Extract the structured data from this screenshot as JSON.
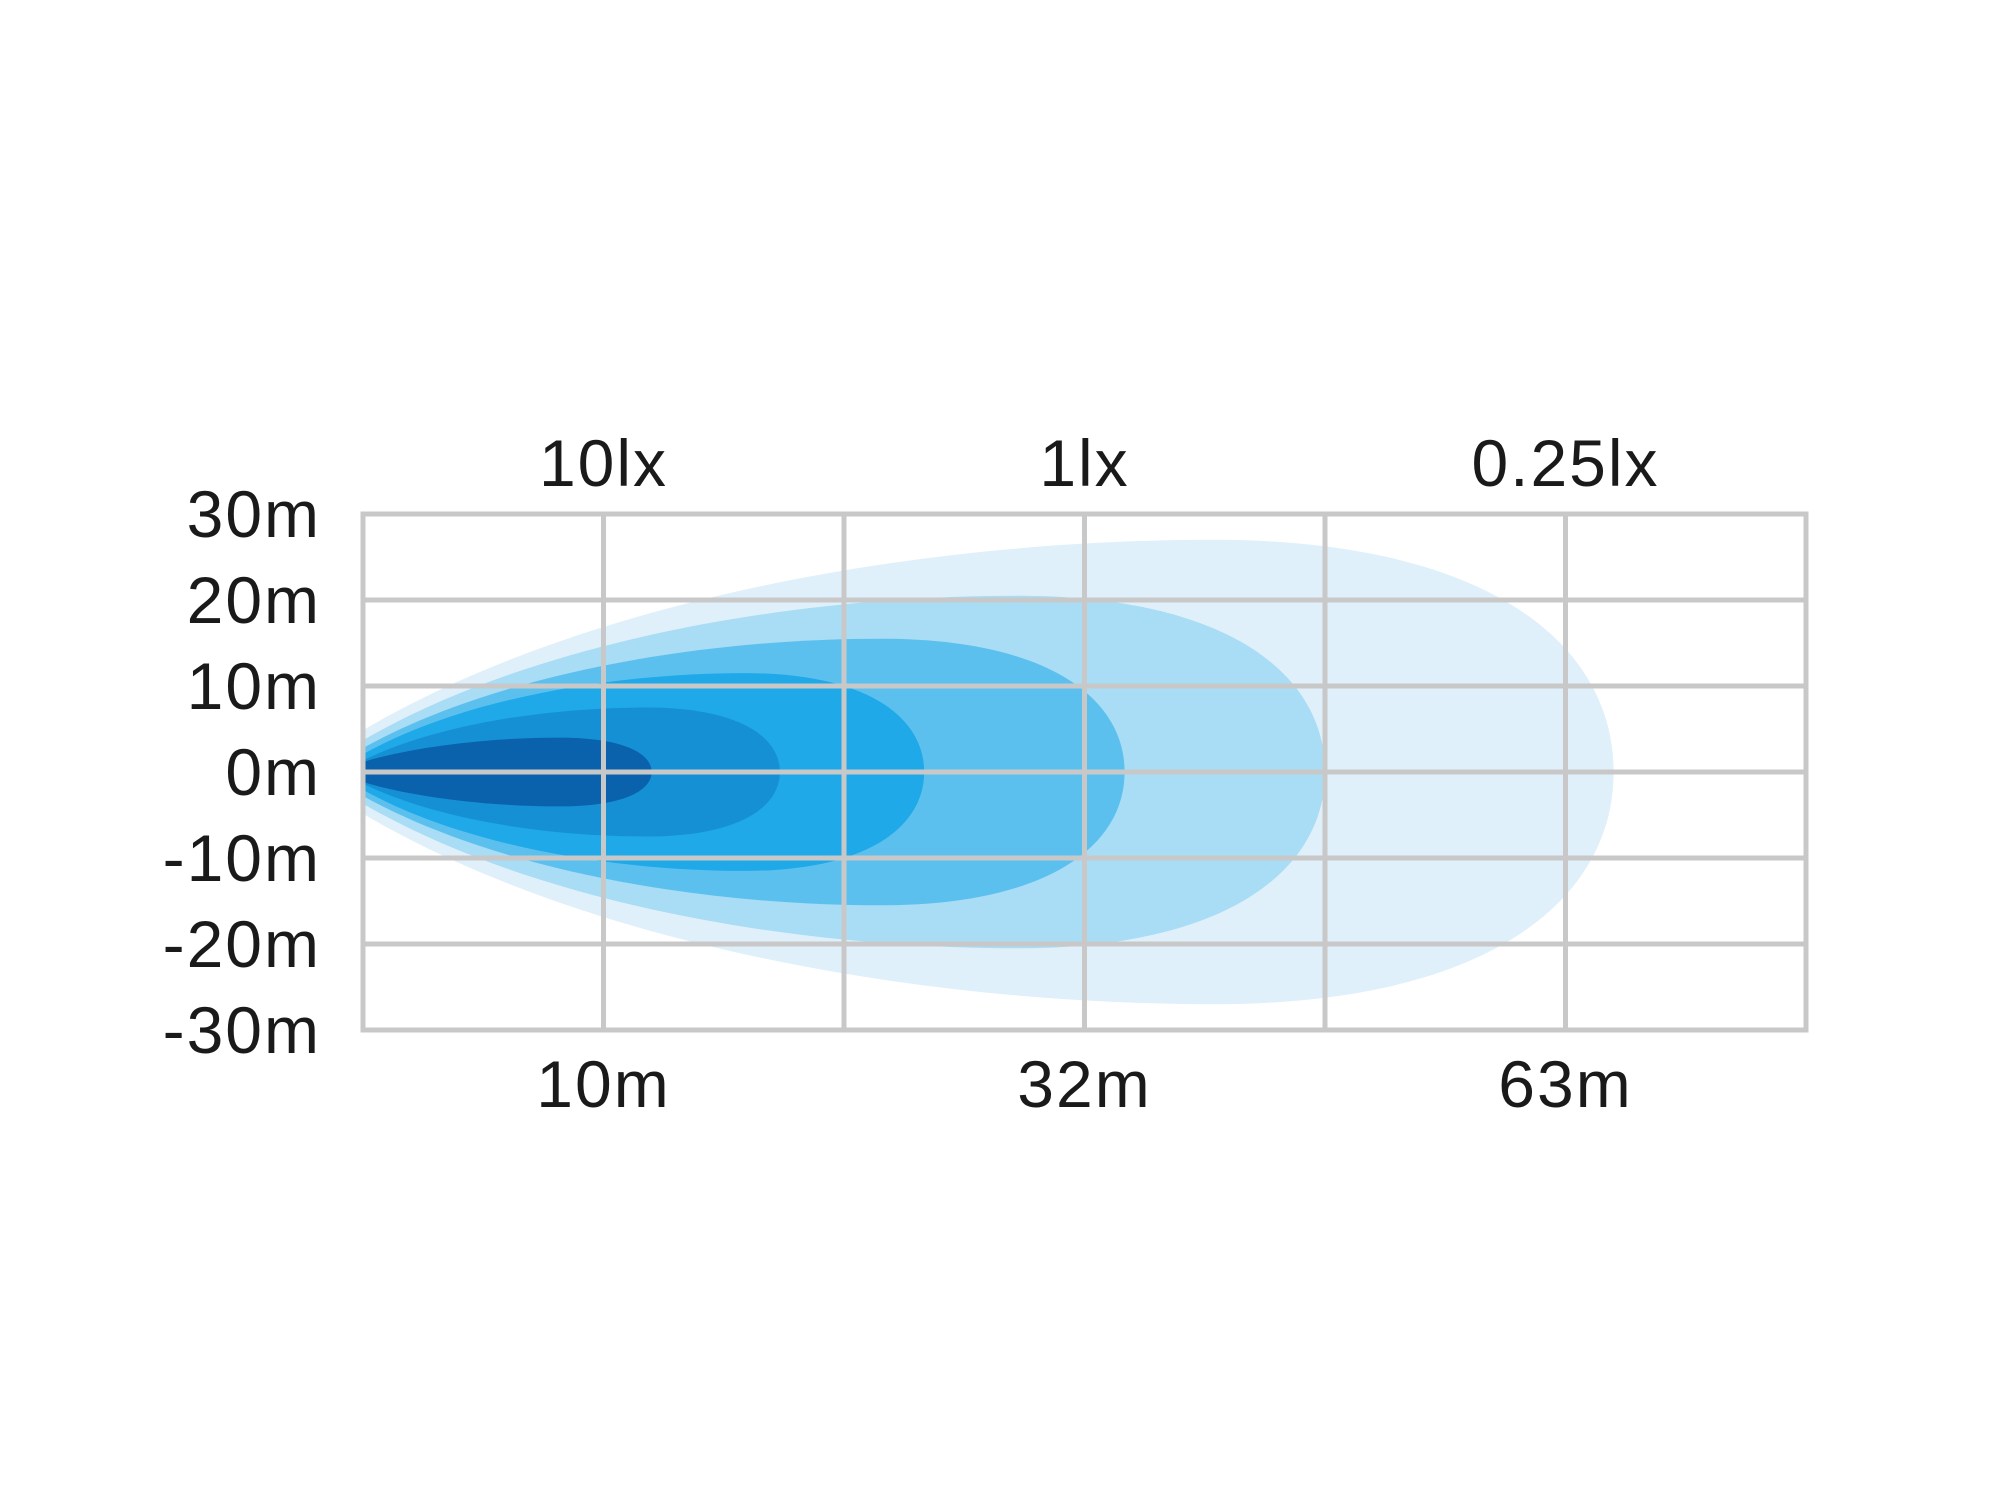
{
  "chart_data": {
    "type": "area",
    "title": "",
    "xlabel": "",
    "ylabel": "",
    "xlim": [
      0,
      90
    ],
    "ylim": [
      -30,
      30
    ],
    "grid": true,
    "y_ticks": [
      {
        "value": 30,
        "label": "30m"
      },
      {
        "value": 20,
        "label": "20m"
      },
      {
        "value": 10,
        "label": "10m"
      },
      {
        "value": 0,
        "label": "0m"
      },
      {
        "value": -10,
        "label": "-10m"
      },
      {
        "value": -20,
        "label": "-20m"
      },
      {
        "value": -30,
        "label": "-30m"
      }
    ],
    "x_ticks": [
      {
        "value": 15,
        "label": "10m"
      },
      {
        "value": 45,
        "label": "32m"
      },
      {
        "value": 75,
        "label": "63m"
      }
    ],
    "lux_labels": [
      {
        "value": 15,
        "label": "10lx"
      },
      {
        "value": 45,
        "label": "1lx"
      },
      {
        "value": 75,
        "label": "0.25lx"
      }
    ],
    "contours": [
      {
        "reach": 78,
        "half_width": 27,
        "color": "#dff0fa"
      },
      {
        "reach": 60,
        "half_width": 20.5,
        "color": "#a9dcf5"
      },
      {
        "reach": 47.5,
        "half_width": 15.5,
        "color": "#5cc0ef"
      },
      {
        "reach": 35,
        "half_width": 11.5,
        "color": "#1fa9e8"
      },
      {
        "reach": 26,
        "half_width": 7.5,
        "color": "#1690d4"
      },
      {
        "reach": 18,
        "half_width": 4,
        "color": "#0a62ad"
      }
    ],
    "grid_color": "#c8c8c8"
  }
}
